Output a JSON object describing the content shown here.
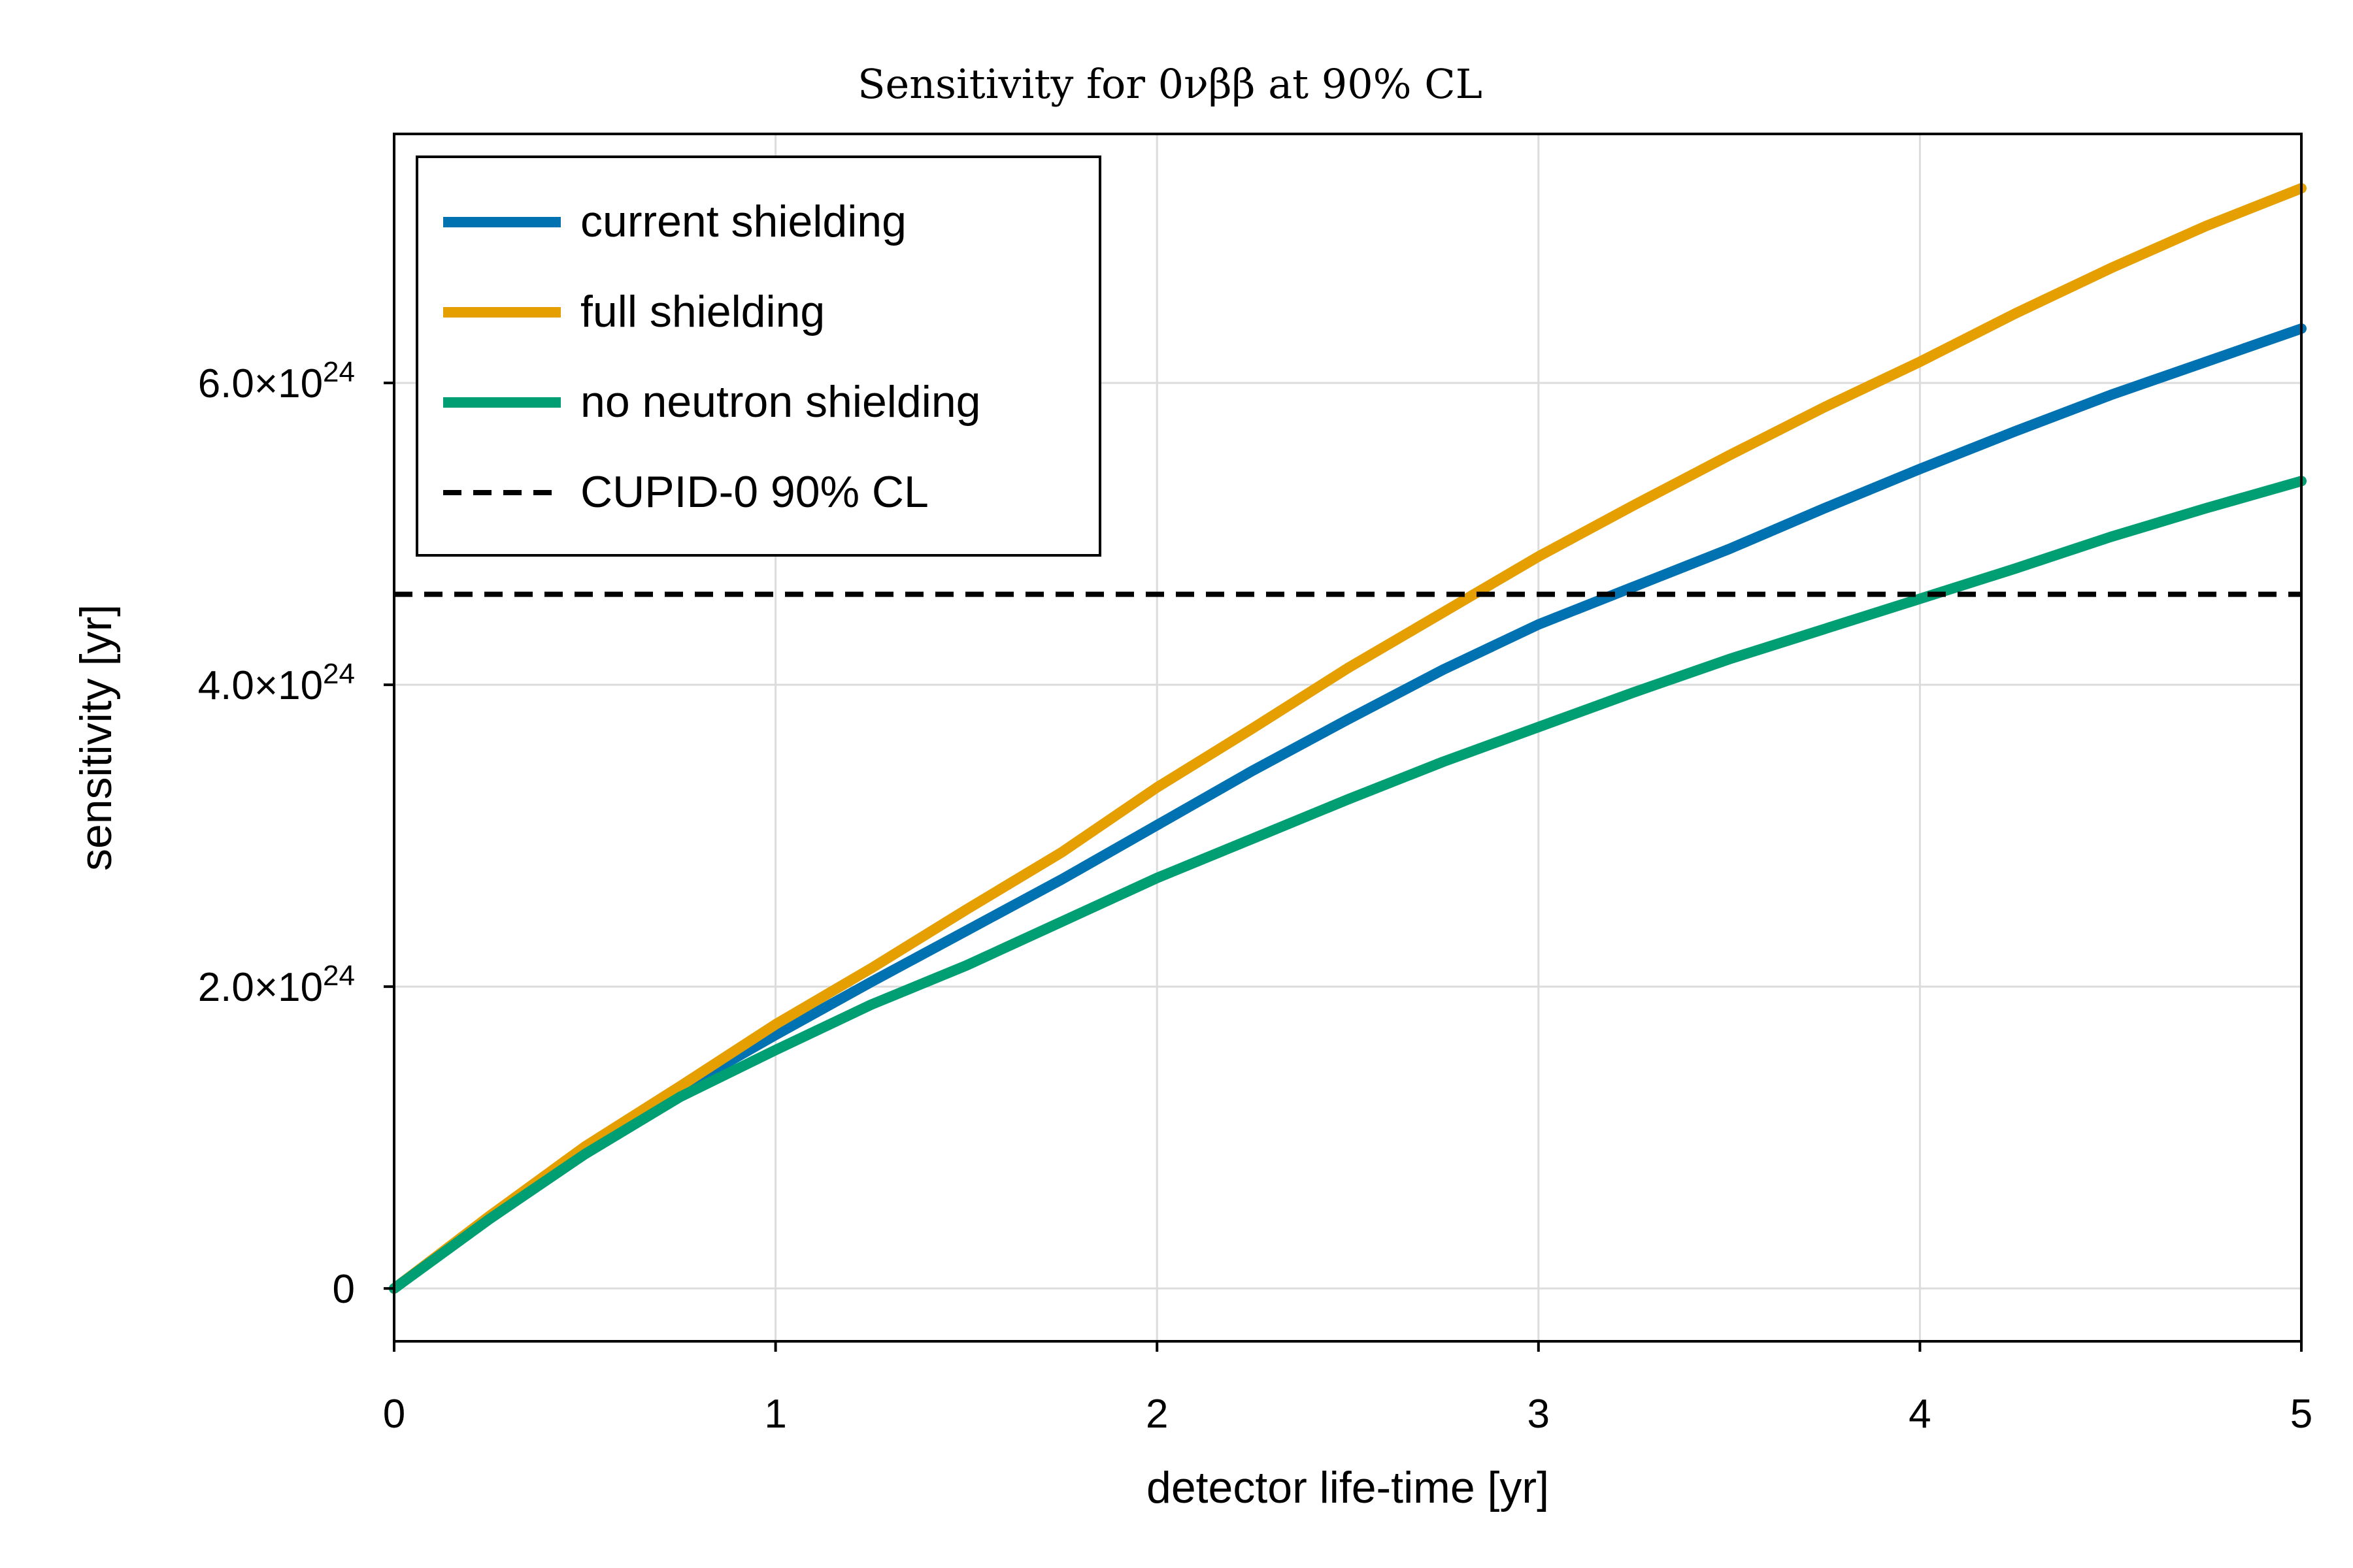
{
  "chart_data": {
    "type": "line",
    "title": "Sensitivity for 0νββ at 90% CL",
    "xlabel": "detector life-time [yr]",
    "ylabel": "sensitivity [yr]",
    "xlim": [
      0,
      5
    ],
    "ylim": [
      -3.5e+23,
      7.65e+24
    ],
    "xticks": [
      0,
      1,
      2,
      3,
      4,
      5
    ],
    "xtick_labels": [
      "0",
      "1",
      "2",
      "3",
      "4",
      "5"
    ],
    "yticks": [
      0,
      2e+24,
      4e+24,
      6e+24
    ],
    "ytick_labels": [
      {
        "mant": "0",
        "exp": ""
      },
      {
        "mant": "2.0×10",
        "exp": "24"
      },
      {
        "mant": "4.0×10",
        "exp": "24"
      },
      {
        "mant": "6.0×10",
        "exp": "24"
      }
    ],
    "grid": true,
    "legend_position": "top-left",
    "x": [
      0,
      0.25,
      0.5,
      0.75,
      1.0,
      1.25,
      1.5,
      1.75,
      2.0,
      2.25,
      2.5,
      2.75,
      3.0,
      3.25,
      3.5,
      3.75,
      4.0,
      4.25,
      4.5,
      4.75,
      5.0
    ],
    "series": [
      {
        "name": "current shielding",
        "color": "#0072B2",
        "style": "solid",
        "values": [
          0,
          4.7e+23,
          9.2e+23,
          1.32e+24,
          1.68e+24,
          2.03e+24,
          2.37e+24,
          2.71e+24,
          3.07e+24,
          3.43e+24,
          3.77e+24,
          4.1e+24,
          4.4e+24,
          4.65e+24,
          4.9e+24,
          5.17e+24,
          5.43e+24,
          5.68e+24,
          5.92e+24,
          6.14e+24,
          6.36e+24
        ]
      },
      {
        "name": "full shielding",
        "color": "#E69F00",
        "style": "solid",
        "values": [
          0,
          4.8e+23,
          9.4e+23,
          1.34e+24,
          1.75e+24,
          2.12e+24,
          2.51e+24,
          2.89e+24,
          3.32e+24,
          3.71e+24,
          4.11e+24,
          4.48e+24,
          4.85e+24,
          5.19e+24,
          5.52e+24,
          5.84e+24,
          6.14e+24,
          6.46e+24,
          6.76e+24,
          7.04e+24,
          7.29e+24
        ]
      },
      {
        "name": "no neutron shielding",
        "color": "#009E73",
        "style": "solid",
        "values": [
          0,
          4.6e+23,
          8.9e+23,
          1.27e+24,
          1.58e+24,
          1.88e+24,
          2.14e+24,
          2.43e+24,
          2.72e+24,
          2.98e+24,
          3.24e+24,
          3.49e+24,
          3.72e+24,
          3.95e+24,
          4.17e+24,
          4.37e+24,
          4.57e+24,
          4.77e+24,
          4.98e+24,
          5.17e+24,
          5.35e+24
        ]
      },
      {
        "name": "CUPID-0 90% CL",
        "color": "#000000",
        "style": "dashed",
        "values": [
          4.6e+24,
          4.6e+24,
          4.6e+24,
          4.6e+24,
          4.6e+24,
          4.6e+24,
          4.6e+24,
          4.6e+24,
          4.6e+24,
          4.6e+24,
          4.6e+24,
          4.6e+24,
          4.6e+24,
          4.6e+24,
          4.6e+24,
          4.6e+24,
          4.6e+24,
          4.6e+24,
          4.6e+24,
          4.6e+24,
          4.6e+24
        ]
      }
    ]
  }
}
